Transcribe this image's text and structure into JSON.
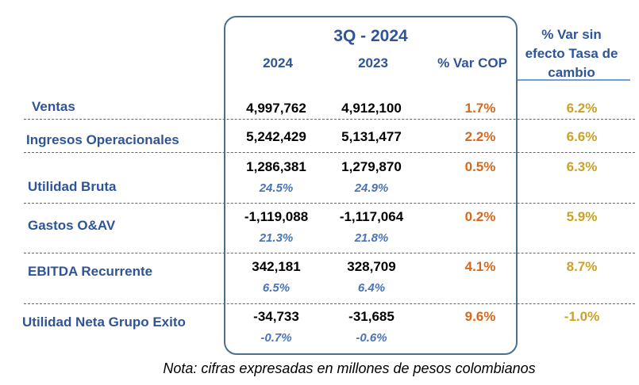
{
  "header": {
    "period": "3Q - 2024",
    "col_2024": "2024",
    "col_2023": "2023",
    "col_var_cop": "% Var COP",
    "col_var_sin_line1": "% Var sin",
    "col_var_sin_line2": "efecto Tasa de",
    "col_var_sin_line3": "cambio"
  },
  "rows": [
    {
      "label": "Ventas",
      "v2024": "4,997,762",
      "v2023": "4,912,100",
      "var_cop": "1.7%",
      "var_sin": "6.2%"
    },
    {
      "label": "Ingresos Operacionales",
      "v2024": "5,242,429",
      "v2023": "5,131,477",
      "var_cop": "2.2%",
      "var_sin": "6.6%"
    },
    {
      "label": "Utilidad Bruta",
      "v2024": "1,286,381",
      "v2023": "1,279,870",
      "p2024": "24.5%",
      "p2023": "24.9%",
      "var_cop": "0.5%",
      "var_sin": "6.3%"
    },
    {
      "label": "Gastos O&AV",
      "v2024": "-1,119,088",
      "v2023": "-1,117,064",
      "p2024": "21.3%",
      "p2023": "21.8%",
      "var_cop": "0.2%",
      "var_sin": "5.9%"
    },
    {
      "label": "EBITDA Recurrente",
      "v2024": "342,181",
      "v2023": "328,709",
      "p2024": "6.5%",
      "p2023": "6.4%",
      "var_cop": "4.1%",
      "var_sin": "8.7%"
    },
    {
      "label": "Utilidad Neta Grupo Exito",
      "v2024": "-34,733",
      "v2023": "-31,685",
      "p2024": "-0.7%",
      "p2023": "-0.6%",
      "var_cop": "9.6%",
      "var_sin": "-1.0%"
    }
  ],
  "note": "Nota: cifras expresadas en millones de pesos colombianos",
  "colors": {
    "title": "#2f5597",
    "var_cop": "#d3691c",
    "var_sin": "#c9a227",
    "box_border": "#4a6f8f"
  }
}
